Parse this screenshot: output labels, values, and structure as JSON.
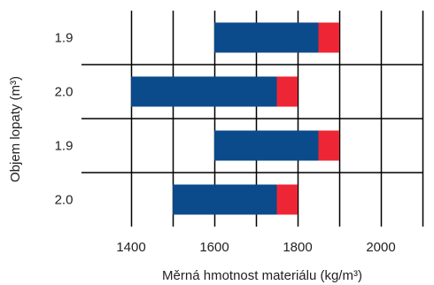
{
  "chart_data": {
    "type": "bar",
    "orientation": "horizontal",
    "stacked": true,
    "categories": [
      "1.9",
      "2.0",
      "1.9",
      "2.0"
    ],
    "series": [
      {
        "values": [
          [
            1600,
            1850
          ],
          [
            1400,
            1750
          ],
          [
            1600,
            1850
          ],
          [
            1500,
            1750
          ]
        ],
        "color": "#0b4a8b"
      },
      {
        "values": [
          [
            1850,
            1900
          ],
          [
            1750,
            1800
          ],
          [
            1850,
            1900
          ],
          [
            1750,
            1800
          ]
        ],
        "color": "#ee2535"
      }
    ],
    "xlabel": "Měrná hmotnost materiálu (kg/m³)",
    "ylabel": "Objem lopaty (m³)",
    "xlim": [
      1300,
      2100
    ],
    "xticks": [
      "1400",
      "1600",
      "1800",
      "2000"
    ],
    "grid": true
  }
}
